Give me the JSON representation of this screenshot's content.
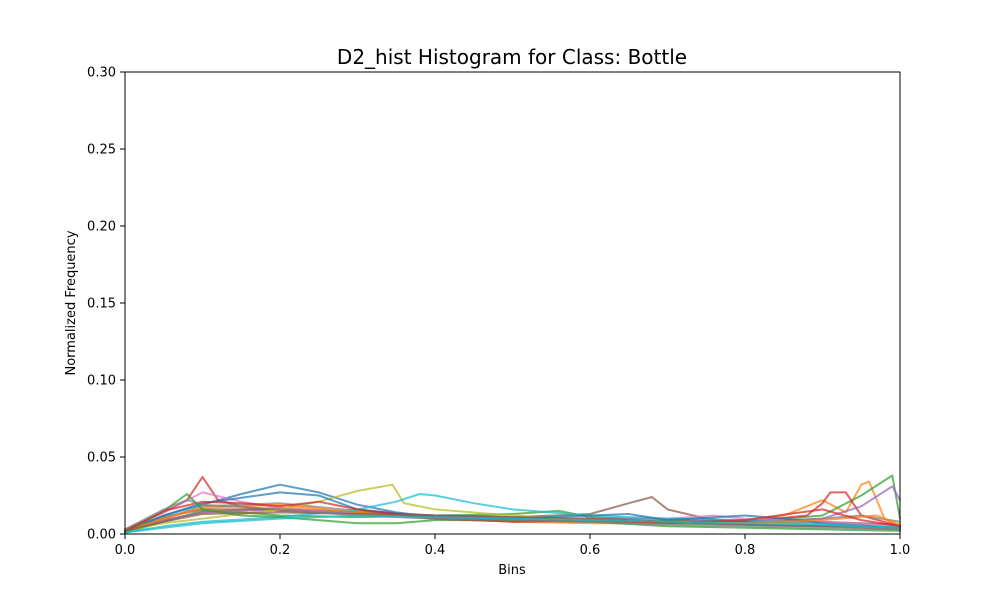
{
  "chart_data": {
    "type": "line",
    "title": "D2_hist Histogram for Class: Bottle",
    "xlabel": "Bins",
    "ylabel": "Normalized Frequency",
    "xlim": [
      0.0,
      1.0
    ],
    "ylim": [
      0.0,
      0.3
    ],
    "xticks": [
      "0.0",
      "0.2",
      "0.4",
      "0.6",
      "0.8",
      "1.0"
    ],
    "yticks": [
      "0.00",
      "0.05",
      "0.10",
      "0.15",
      "0.20",
      "0.25",
      "0.30"
    ],
    "grid": false,
    "legend": "none",
    "series": [
      {
        "color": "#1f77b4",
        "points": [
          [
            0,
            0.002
          ],
          [
            0.05,
            0.012
          ],
          [
            0.1,
            0.019
          ],
          [
            0.15,
            0.026
          ],
          [
            0.2,
            0.032
          ],
          [
            0.25,
            0.027
          ],
          [
            0.3,
            0.019
          ],
          [
            0.35,
            0.014
          ],
          [
            0.4,
            0.011
          ],
          [
            0.45,
            0.01
          ],
          [
            0.5,
            0.009
          ],
          [
            0.6,
            0.009
          ],
          [
            0.65,
            0.008
          ],
          [
            0.7,
            0.007
          ],
          [
            0.8,
            0.006
          ],
          [
            0.9,
            0.005
          ],
          [
            0.95,
            0.005
          ],
          [
            1.0,
            0.004
          ]
        ]
      },
      {
        "color": "#ff7f0e",
        "points": [
          [
            0,
            0.002
          ],
          [
            0.05,
            0.009
          ],
          [
            0.1,
            0.014
          ],
          [
            0.15,
            0.016
          ],
          [
            0.2,
            0.017
          ],
          [
            0.3,
            0.014
          ],
          [
            0.4,
            0.012
          ],
          [
            0.5,
            0.01
          ],
          [
            0.6,
            0.009
          ],
          [
            0.7,
            0.008
          ],
          [
            0.8,
            0.009
          ],
          [
            0.85,
            0.012
          ],
          [
            0.9,
            0.022
          ],
          [
            0.93,
            0.014
          ],
          [
            0.95,
            0.032
          ],
          [
            0.96,
            0.034
          ],
          [
            0.98,
            0.01
          ],
          [
            1.0,
            0.004
          ]
        ]
      },
      {
        "color": "#2ca02c",
        "points": [
          [
            0,
            0.001
          ],
          [
            0.05,
            0.008
          ],
          [
            0.1,
            0.015
          ],
          [
            0.15,
            0.014
          ],
          [
            0.2,
            0.012
          ],
          [
            0.3,
            0.011
          ],
          [
            0.4,
            0.012
          ],
          [
            0.5,
            0.013
          ],
          [
            0.56,
            0.015
          ],
          [
            0.6,
            0.011
          ],
          [
            0.7,
            0.009
          ],
          [
            0.8,
            0.008
          ],
          [
            0.9,
            0.012
          ],
          [
            0.95,
            0.025
          ],
          [
            0.99,
            0.038
          ],
          [
            1.0,
            0.01
          ]
        ]
      },
      {
        "color": "#d62728",
        "points": [
          [
            0,
            0.003
          ],
          [
            0.05,
            0.014
          ],
          [
            0.08,
            0.022
          ],
          [
            0.1,
            0.037
          ],
          [
            0.12,
            0.022
          ],
          [
            0.15,
            0.018
          ],
          [
            0.2,
            0.015
          ],
          [
            0.3,
            0.013
          ],
          [
            0.4,
            0.011
          ],
          [
            0.5,
            0.009
          ],
          [
            0.6,
            0.008
          ],
          [
            0.7,
            0.008
          ],
          [
            0.8,
            0.008
          ],
          [
            0.88,
            0.012
          ],
          [
            0.9,
            0.02
          ],
          [
            0.91,
            0.027
          ],
          [
            0.93,
            0.027
          ],
          [
            0.95,
            0.012
          ],
          [
            1.0,
            0.005
          ]
        ]
      },
      {
        "color": "#9467bd",
        "points": [
          [
            0,
            0.002
          ],
          [
            0.05,
            0.009
          ],
          [
            0.1,
            0.014
          ],
          [
            0.2,
            0.016
          ],
          [
            0.3,
            0.014
          ],
          [
            0.4,
            0.012
          ],
          [
            0.5,
            0.01
          ],
          [
            0.6,
            0.01
          ],
          [
            0.7,
            0.01
          ],
          [
            0.8,
            0.008
          ],
          [
            0.9,
            0.01
          ],
          [
            0.95,
            0.018
          ],
          [
            0.99,
            0.031
          ],
          [
            1.0,
            0.022
          ]
        ]
      },
      {
        "color": "#8c564b",
        "points": [
          [
            0,
            0.002
          ],
          [
            0.05,
            0.011
          ],
          [
            0.1,
            0.016
          ],
          [
            0.2,
            0.016
          ],
          [
            0.3,
            0.014
          ],
          [
            0.4,
            0.012
          ],
          [
            0.5,
            0.011
          ],
          [
            0.6,
            0.013
          ],
          [
            0.65,
            0.02
          ],
          [
            0.68,
            0.024
          ],
          [
            0.7,
            0.016
          ],
          [
            0.75,
            0.01
          ],
          [
            0.8,
            0.008
          ],
          [
            0.9,
            0.008
          ],
          [
            1.0,
            0.006
          ]
        ]
      },
      {
        "color": "#e377c2",
        "points": [
          [
            0,
            0.002
          ],
          [
            0.05,
            0.014
          ],
          [
            0.1,
            0.027
          ],
          [
            0.15,
            0.021
          ],
          [
            0.2,
            0.017
          ],
          [
            0.3,
            0.013
          ],
          [
            0.4,
            0.01
          ],
          [
            0.5,
            0.008
          ],
          [
            0.6,
            0.008
          ],
          [
            0.7,
            0.01
          ],
          [
            0.76,
            0.012
          ],
          [
            0.8,
            0.01
          ],
          [
            0.9,
            0.008
          ],
          [
            1.0,
            0.005
          ]
        ]
      },
      {
        "color": "#7f7f7f",
        "points": [
          [
            0,
            0.002
          ],
          [
            0.05,
            0.01
          ],
          [
            0.1,
            0.018
          ],
          [
            0.2,
            0.02
          ],
          [
            0.3,
            0.015
          ],
          [
            0.4,
            0.012
          ],
          [
            0.5,
            0.01
          ],
          [
            0.6,
            0.009
          ],
          [
            0.7,
            0.008
          ],
          [
            0.8,
            0.007
          ],
          [
            0.9,
            0.01
          ],
          [
            0.95,
            0.012
          ],
          [
            1.0,
            0.008
          ]
        ]
      },
      {
        "color": "#bcbd22",
        "points": [
          [
            0,
            0.002
          ],
          [
            0.05,
            0.007
          ],
          [
            0.1,
            0.01
          ],
          [
            0.15,
            0.013
          ],
          [
            0.2,
            0.016
          ],
          [
            0.25,
            0.021
          ],
          [
            0.3,
            0.028
          ],
          [
            0.345,
            0.032
          ],
          [
            0.36,
            0.02
          ],
          [
            0.4,
            0.016
          ],
          [
            0.5,
            0.012
          ],
          [
            0.6,
            0.009
          ],
          [
            0.7,
            0.008
          ],
          [
            0.8,
            0.007
          ],
          [
            0.9,
            0.006
          ],
          [
            1.0,
            0.004
          ]
        ]
      },
      {
        "color": "#17becf",
        "points": [
          [
            0,
            0.001
          ],
          [
            0.05,
            0.005
          ],
          [
            0.1,
            0.008
          ],
          [
            0.2,
            0.011
          ],
          [
            0.3,
            0.016
          ],
          [
            0.35,
            0.021
          ],
          [
            0.38,
            0.026
          ],
          [
            0.4,
            0.025
          ],
          [
            0.45,
            0.02
          ],
          [
            0.5,
            0.016
          ],
          [
            0.6,
            0.012
          ],
          [
            0.7,
            0.01
          ],
          [
            0.8,
            0.009
          ],
          [
            0.9,
            0.006
          ],
          [
            1.0,
            0.004
          ]
        ]
      },
      {
        "color": "#1f77b4",
        "points": [
          [
            0,
            0.002
          ],
          [
            0.05,
            0.012
          ],
          [
            0.1,
            0.02
          ],
          [
            0.2,
            0.027
          ],
          [
            0.25,
            0.025
          ],
          [
            0.3,
            0.016
          ],
          [
            0.4,
            0.011
          ],
          [
            0.5,
            0.01
          ],
          [
            0.6,
            0.012
          ],
          [
            0.65,
            0.013
          ],
          [
            0.7,
            0.009
          ],
          [
            0.8,
            0.012
          ],
          [
            0.85,
            0.01
          ],
          [
            0.9,
            0.007
          ],
          [
            1.0,
            0.004
          ]
        ]
      },
      {
        "color": "#ff7f0e",
        "points": [
          [
            0,
            0.002
          ],
          [
            0.05,
            0.01
          ],
          [
            0.1,
            0.017
          ],
          [
            0.2,
            0.019
          ],
          [
            0.3,
            0.014
          ],
          [
            0.4,
            0.01
          ],
          [
            0.5,
            0.008
          ],
          [
            0.6,
            0.007
          ],
          [
            0.7,
            0.007
          ],
          [
            0.8,
            0.007
          ],
          [
            0.9,
            0.009
          ],
          [
            0.97,
            0.012
          ],
          [
            1.0,
            0.006
          ]
        ]
      },
      {
        "color": "#2ca02c",
        "points": [
          [
            0,
            0.001
          ],
          [
            0.05,
            0.015
          ],
          [
            0.08,
            0.026
          ],
          [
            0.1,
            0.016
          ],
          [
            0.15,
            0.012
          ],
          [
            0.2,
            0.011
          ],
          [
            0.3,
            0.007
          ],
          [
            0.35,
            0.007
          ],
          [
            0.4,
            0.009
          ],
          [
            0.5,
            0.009
          ],
          [
            0.6,
            0.008
          ],
          [
            0.7,
            0.005
          ],
          [
            0.8,
            0.004
          ],
          [
            0.9,
            0.003
          ],
          [
            1.0,
            0.002
          ]
        ]
      },
      {
        "color": "#d62728",
        "points": [
          [
            0,
            0.002
          ],
          [
            0.05,
            0.015
          ],
          [
            0.1,
            0.021
          ],
          [
            0.15,
            0.02
          ],
          [
            0.2,
            0.018
          ],
          [
            0.25,
            0.021
          ],
          [
            0.3,
            0.016
          ],
          [
            0.4,
            0.01
          ],
          [
            0.5,
            0.008
          ],
          [
            0.6,
            0.009
          ],
          [
            0.7,
            0.007
          ],
          [
            0.8,
            0.009
          ],
          [
            0.9,
            0.016
          ],
          [
            0.95,
            0.009
          ],
          [
            1.0,
            0.005
          ]
        ]
      },
      {
        "color": "#8c564b",
        "points": [
          [
            0,
            0.002
          ],
          [
            0.05,
            0.008
          ],
          [
            0.1,
            0.013
          ],
          [
            0.2,
            0.014
          ],
          [
            0.3,
            0.013
          ],
          [
            0.4,
            0.012
          ],
          [
            0.5,
            0.011
          ],
          [
            0.6,
            0.01
          ],
          [
            0.7,
            0.008
          ],
          [
            0.8,
            0.006
          ],
          [
            0.9,
            0.005
          ],
          [
            1.0,
            0.003
          ]
        ]
      },
      {
        "color": "#7f7f7f",
        "points": [
          [
            0,
            0.003
          ],
          [
            0.05,
            0.016
          ],
          [
            0.08,
            0.022
          ],
          [
            0.1,
            0.019
          ],
          [
            0.2,
            0.016
          ],
          [
            0.3,
            0.012
          ],
          [
            0.4,
            0.01
          ],
          [
            0.5,
            0.009
          ],
          [
            0.6,
            0.008
          ],
          [
            0.7,
            0.006
          ],
          [
            0.8,
            0.005
          ],
          [
            0.9,
            0.004
          ],
          [
            1.0,
            0.003
          ]
        ]
      },
      {
        "color": "#17becf",
        "points": [
          [
            0,
            0.001
          ],
          [
            0.05,
            0.004
          ],
          [
            0.1,
            0.007
          ],
          [
            0.2,
            0.01
          ],
          [
            0.3,
            0.012
          ],
          [
            0.4,
            0.011
          ],
          [
            0.5,
            0.01
          ],
          [
            0.6,
            0.009
          ],
          [
            0.7,
            0.008
          ],
          [
            0.8,
            0.007
          ],
          [
            0.9,
            0.006
          ],
          [
            1.0,
            0.004
          ]
        ]
      }
    ]
  }
}
